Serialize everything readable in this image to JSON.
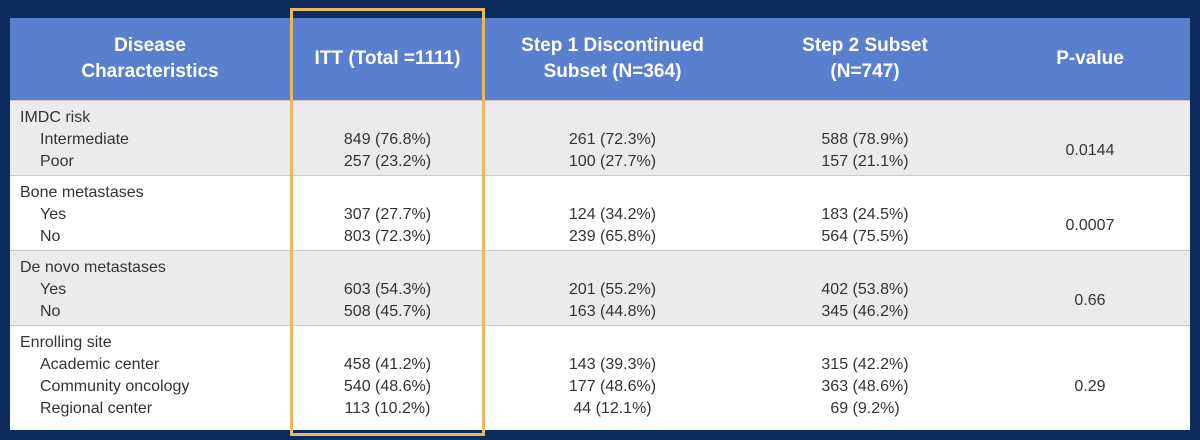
{
  "header": [
    "Disease Characteristics",
    "ITT (Total =1111)",
    "Step 1 Discontinued Subset (N=364)",
    "Step 2 Subset (N=747)",
    "P-value"
  ],
  "groups": [
    {
      "label": "IMDC risk",
      "p_value": "0.0144",
      "rows": [
        {
          "label": "Intermediate",
          "values": [
            "849 (76.8%)",
            "261 (72.3%)",
            "588 (78.9%)"
          ]
        },
        {
          "label": "Poor",
          "values": [
            "257 (23.2%)",
            "100 (27.7%)",
            "157 (21.1%)"
          ]
        }
      ]
    },
    {
      "label": "Bone metastases",
      "p_value": "0.0007",
      "rows": [
        {
          "label": "Yes",
          "values": [
            "307 (27.7%)",
            "124 (34.2%)",
            "183 (24.5%)"
          ]
        },
        {
          "label": "No",
          "values": [
            "803 (72.3%)",
            "239 (65.8%)",
            "564 (75.5%)"
          ]
        }
      ]
    },
    {
      "label": "De novo metastases",
      "p_value": "0.66",
      "rows": [
        {
          "label": "Yes",
          "values": [
            "603 (54.3%)",
            "201 (55.2%)",
            "402 (53.8%)"
          ]
        },
        {
          "label": "No",
          "values": [
            "508 (45.7%)",
            "163 (44.8%)",
            "345 (46.2%)"
          ]
        }
      ]
    },
    {
      "label": "Enrolling site",
      "p_value": "0.29",
      "rows": [
        {
          "label": "Academic center",
          "values": [
            "458 (41.2%)",
            "143 (39.3%)",
            "315 (42.2%)"
          ]
        },
        {
          "label": "Community oncology",
          "values": [
            "540 (48.6%)",
            "177 (48.6%)",
            "363 (48.6%)"
          ]
        },
        {
          "label": "Regional center",
          "values": [
            "113 (10.2%)",
            "44 (12.1%)",
            "69 (9.2%)"
          ]
        }
      ]
    }
  ]
}
